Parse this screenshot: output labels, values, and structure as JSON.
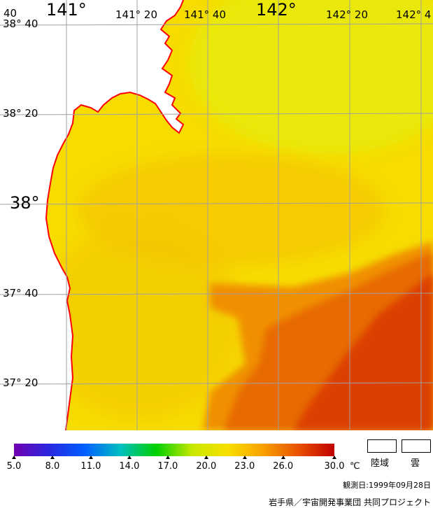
{
  "map": {
    "lon_labels": [
      {
        "text": "141°",
        "size": "big"
      },
      {
        "text": "141° 20",
        "size": "small"
      },
      {
        "text": "141° 40",
        "size": "small"
      },
      {
        "text": "142°",
        "size": "big"
      },
      {
        "text": "142° 20",
        "size": "small"
      },
      {
        "text": "142° 4",
        "size": "small"
      }
    ],
    "corner_label": "40",
    "lat_labels": [
      {
        "text": "38° 40",
        "size": "small"
      },
      {
        "text": "38° 20",
        "size": "small"
      },
      {
        "text": "38°",
        "size": "big"
      },
      {
        "text": "37° 40",
        "size": "small"
      },
      {
        "text": "37° 20",
        "size": "small"
      }
    ],
    "colors": {
      "land": "#ffffff",
      "coastline": "#ff0000",
      "grid": "#a0a0a0",
      "sst_yellow": "#f6e000",
      "sst_orange": "#f4a400",
      "sst_deep_orange": "#e86000",
      "sst_red": "#d83800"
    }
  },
  "legend": {
    "scale_min": 5.0,
    "scale_max": 30.0,
    "ticks": [
      "5.0",
      "8.0",
      "11.0",
      "14.0",
      "17.0",
      "20.0",
      "23.0",
      "26.0",
      "30.0"
    ],
    "tick_values": [
      5,
      8,
      11,
      14,
      17,
      20,
      23,
      26,
      30
    ],
    "unit": "℃",
    "gradient": [
      "#7000b0",
      "#2828e0",
      "#0060ff",
      "#00c0c0",
      "#00d000",
      "#c8e800",
      "#f8e000",
      "#f8a000",
      "#e85000",
      "#c00000"
    ],
    "key_land": "陸域",
    "key_cloud": "雲",
    "observation_date": "観測日:1999年09月28日",
    "credit": "岩手県／宇宙開発事業団 共同プロジェクト"
  }
}
